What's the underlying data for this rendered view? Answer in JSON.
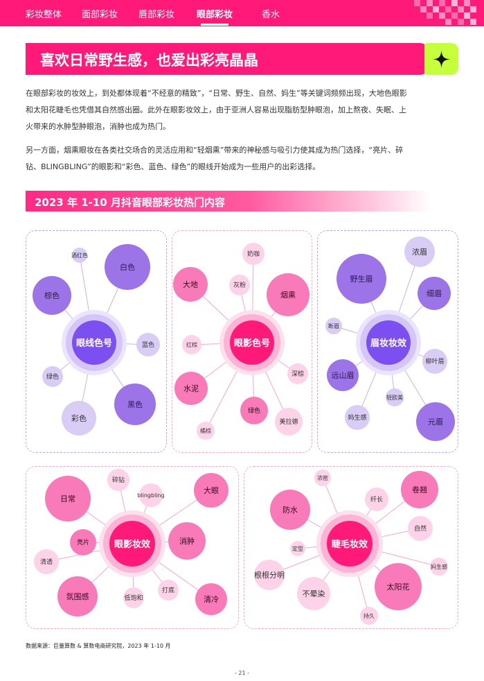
{
  "nav": {
    "tabs": [
      {
        "label": "彩妆整体"
      },
      {
        "label": "面部彩妆"
      },
      {
        "label": "唇部彩妆"
      },
      {
        "label": "眼部彩妆",
        "active": true
      },
      {
        "label": "香水"
      }
    ]
  },
  "header": {
    "title": "喜欢日常野生感，也爱出彩亮晶晶",
    "star_icon": "sparkle-star-icon"
  },
  "body": {
    "paragraph_1_line_1": "在眼部彩妆的妆效上，到处都体现着“不经意的精致”，“日常、野生、自然、妈生”等关键词频频出现，大地色眼影",
    "paragraph_1_line_2": "和太阳花睫毛也凭借其自然感出圈。此外在眼影妆效上，由于亚洲人容易出现脂肪型肿眼泡，加上熬夜、失眠、上",
    "paragraph_1_line_3": "火带来的水肿型肿眼泡，消肿也成为热门。",
    "paragraph_2_line_1": "另一方面，烟熏眼妆在各类社交场合的灵活应用和“轻烟熏”带来的神秘感与吸引力使其成为热门选择，“亮片、碎",
    "paragraph_2_line_2": "钻、BLINGBLING”的眼影和“彩色、蓝色、绿色”的眼线开始成为一些用户的出彩选择。"
  },
  "section": {
    "title": "2023 年 1-10 月抖音眼部彩妆热门内容"
  },
  "colors": {
    "brand_pink": "#ff1a7a",
    "lime": "#c6ff3b",
    "purple": "#9d74e8",
    "light_purple": "#d9ccf5",
    "pink": "#f97ab8",
    "light_pink": "#fcd3e8"
  },
  "graphs": [
    {
      "id": "eyeliner",
      "center": "眼线色号",
      "theme": "purple",
      "nodes": [
        "酒红色",
        "白色",
        "棕色",
        "蓝色",
        "绿色",
        "黑色",
        "彩色"
      ]
    },
    {
      "id": "eyeshadow-color",
      "center": "眼影色号",
      "theme": "pink",
      "nodes": [
        "奶咖",
        "大地",
        "灰粉",
        "烟熏",
        "红棕",
        "深棕",
        "水泥",
        "绿色",
        "美拉德",
        "橘棕"
      ]
    },
    {
      "id": "brow",
      "center": "眉妆妆效",
      "theme": "purple",
      "nodes": [
        "浓眉",
        "野生眉",
        "细眉",
        "断眉",
        "柳叶眉",
        "远山眉",
        "轻欧美",
        "妈生感",
        "元眉"
      ]
    },
    {
      "id": "eyeshadow-effect",
      "center": "眼影妆效",
      "theme": "pink",
      "nodes": [
        "碎钻",
        "日常",
        "blingbling",
        "大眼",
        "亮片",
        "消肿",
        "清透",
        "打底",
        "低饱和",
        "氛围感",
        "清冷"
      ]
    },
    {
      "id": "lash",
      "center": "睫毛妆效",
      "theme": "pink",
      "nodes": [
        "浓密",
        "卷翘",
        "防水",
        "纤长",
        "自然",
        "定型",
        "妈生感",
        "根根分明",
        "太阳花",
        "不晕染",
        "持久"
      ]
    }
  ],
  "footer": {
    "source": "数据来源：巨量算数 & 算数电商研究院，2023 年 1-10 月",
    "page": "- 21 -"
  }
}
